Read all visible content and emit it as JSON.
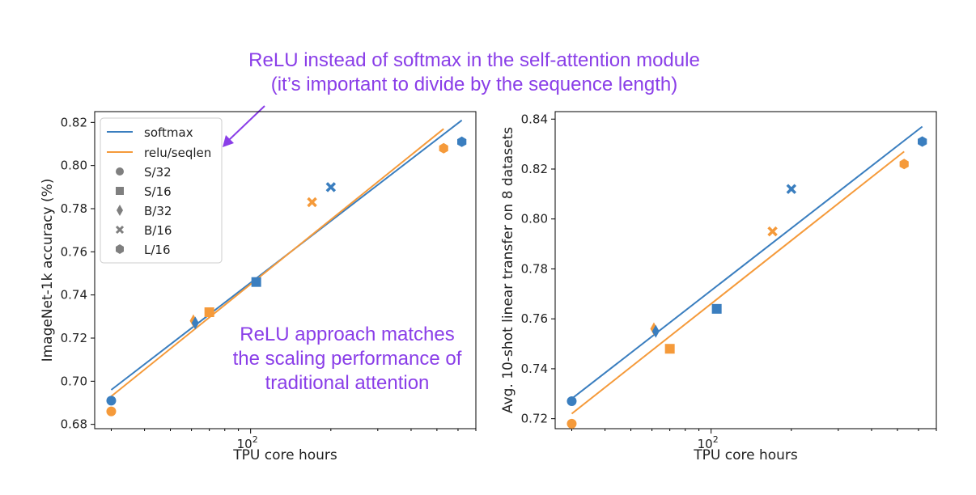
{
  "annotations": {
    "top_line1": "ReLU instead of softmax in the self-attention module",
    "top_line2": "(it’s important to divide by the sequence length)",
    "mid_line1": "ReLU approach matches",
    "mid_line2": "the scaling performance of",
    "mid_line3": "traditional attention",
    "color": "#8a3ee8"
  },
  "legend": {
    "lines": [
      {
        "label": "softmax",
        "color": "#3a7ebf"
      },
      {
        "label": "relu/seqlen",
        "color": "#f59a3a"
      }
    ],
    "markers": [
      {
        "label": "S/32",
        "shape": "circle"
      },
      {
        "label": "S/16",
        "shape": "square"
      },
      {
        "label": "B/32",
        "shape": "thin-diamond"
      },
      {
        "label": "B/16",
        "shape": "x"
      },
      {
        "label": "L/16",
        "shape": "hexagon"
      }
    ],
    "marker_color": "#7f7f7f"
  },
  "chart_data": [
    {
      "type": "scatter",
      "xscale": "log",
      "xlabel": "TPU core hours",
      "ylabel": "ImageNet-1k accuracy (%)",
      "xlim": [
        26,
        700
      ],
      "ylim": [
        0.678,
        0.825
      ],
      "xticks": [
        {
          "value": 100,
          "base": "10",
          "exp": "2"
        }
      ],
      "yticks": [
        0.68,
        0.7,
        0.72,
        0.74,
        0.76,
        0.78,
        0.8,
        0.82
      ],
      "legend_position": "upper-left",
      "series": [
        {
          "name": "softmax",
          "color": "#3a7ebf",
          "fit": [
            [
              30,
              0.696
            ],
            [
              620,
              0.821
            ]
          ],
          "points": [
            {
              "model": "S/32",
              "x": 30,
              "y": 0.691
            },
            {
              "model": "B/32",
              "x": 62,
              "y": 0.727
            },
            {
              "model": "S/16",
              "x": 105,
              "y": 0.746
            },
            {
              "model": "B/16",
              "x": 200,
              "y": 0.79
            },
            {
              "model": "L/16",
              "x": 620,
              "y": 0.811
            }
          ]
        },
        {
          "name": "relu/seqlen",
          "color": "#f59a3a",
          "fit": [
            [
              30,
              0.693
            ],
            [
              530,
              0.817
            ]
          ],
          "points": [
            {
              "model": "S/32",
              "x": 30,
              "y": 0.686
            },
            {
              "model": "B/32",
              "x": 61,
              "y": 0.728
            },
            {
              "model": "S/16",
              "x": 70,
              "y": 0.732
            },
            {
              "model": "B/16",
              "x": 170,
              "y": 0.783
            },
            {
              "model": "L/16",
              "x": 530,
              "y": 0.808
            }
          ]
        }
      ]
    },
    {
      "type": "scatter",
      "xscale": "log",
      "xlabel": "TPU core hours",
      "ylabel": "Avg. 10-shot linear transfer on 8 datasets",
      "xlim": [
        26,
        700
      ],
      "ylim": [
        0.716,
        0.843
      ],
      "xticks": [
        {
          "value": 100,
          "base": "10",
          "exp": "2"
        }
      ],
      "yticks": [
        0.72,
        0.74,
        0.76,
        0.78,
        0.8,
        0.82,
        0.84
      ],
      "series": [
        {
          "name": "softmax",
          "color": "#3a7ebf",
          "fit": [
            [
              30,
              0.728
            ],
            [
              620,
              0.837
            ]
          ],
          "points": [
            {
              "model": "S/32",
              "x": 30,
              "y": 0.727
            },
            {
              "model": "B/32",
              "x": 62,
              "y": 0.755
            },
            {
              "model": "S/16",
              "x": 105,
              "y": 0.764
            },
            {
              "model": "B/16",
              "x": 200,
              "y": 0.812
            },
            {
              "model": "L/16",
              "x": 620,
              "y": 0.831
            }
          ]
        },
        {
          "name": "relu/seqlen",
          "color": "#f59a3a",
          "fit": [
            [
              30,
              0.722
            ],
            [
              530,
              0.827
            ]
          ],
          "points": [
            {
              "model": "S/32",
              "x": 30,
              "y": 0.718
            },
            {
              "model": "B/32",
              "x": 61,
              "y": 0.756
            },
            {
              "model": "S/16",
              "x": 70,
              "y": 0.748
            },
            {
              "model": "B/16",
              "x": 170,
              "y": 0.795
            },
            {
              "model": "L/16",
              "x": 530,
              "y": 0.822
            }
          ]
        }
      ]
    }
  ]
}
